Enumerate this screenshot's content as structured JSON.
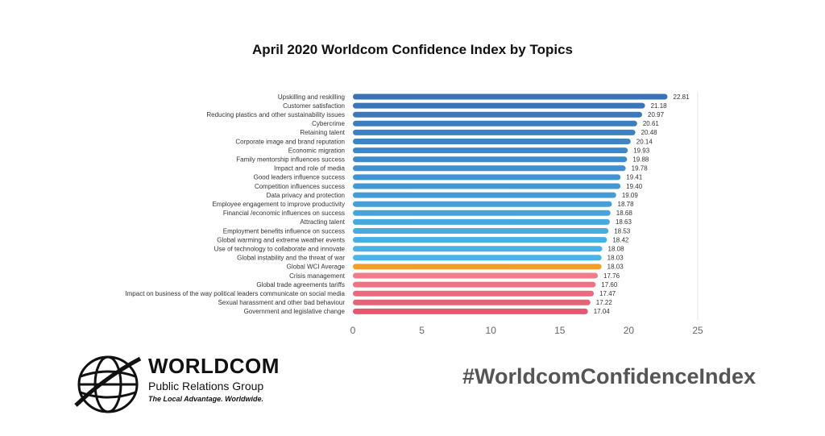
{
  "chart_data": {
    "type": "bar",
    "orientation": "horizontal",
    "title": "April 2020 Worldcom Confidence Index by Topics",
    "categories": [
      "Upskilling and reskilling",
      "Customer satisfaction",
      "Reducing plastics and other sustainability issues",
      "Cybercrime",
      "Retaining talent",
      "Corporate image and brand reputation",
      "Economic migration",
      "Family mentorship influences success",
      "Impact and role of media",
      "Good leaders influence success",
      "Competition influences success",
      "Data privacy and protection",
      "Employee engagement to improve productivity",
      "Financial /economic influences on success",
      "Attracting talent",
      "Employment benefits influence on success",
      "Global warming and extreme weather events",
      "Use of technology to collaborate and innovate",
      "Global instability and the threat of war",
      "Global WCI Average",
      "Crisis management",
      "Global trade agreements tariffs",
      "Impact on business of the way political leaders communicate on social media",
      "Sexual harassment and other bad behaviour",
      "Government and legislative change"
    ],
    "values": [
      22.81,
      21.18,
      20.97,
      20.61,
      20.48,
      20.14,
      19.93,
      19.88,
      19.78,
      19.41,
      19.4,
      19.09,
      18.78,
      18.68,
      18.63,
      18.53,
      18.42,
      18.08,
      18.03,
      18.03,
      17.76,
      17.6,
      17.47,
      17.22,
      17.04
    ],
    "value_labels": [
      "22.81",
      "21.18",
      "20.97",
      "20.61",
      "20.48",
      "20.14",
      "19.93",
      "19.88",
      "19.78",
      "19.41",
      "19.40",
      "19.09",
      "18.78",
      "18.68",
      "18.63",
      "18.53",
      "18.42",
      "18.08",
      "18.03",
      "18.03",
      "17.76",
      "17.60",
      "17.47",
      "17.22",
      "17.04"
    ],
    "bar_colors": [
      "#3a72b5",
      "#3b75b8",
      "#3c78bb",
      "#3d7cbe",
      "#3e80c1",
      "#3f84c4",
      "#3f88c7",
      "#408cca",
      "#4190cd",
      "#4294d0",
      "#4398d3",
      "#449cd6",
      "#45a0d9",
      "#46a4dc",
      "#47a8df",
      "#48abe2",
      "#49aee4",
      "#4ab1e6",
      "#4bb4e8",
      "#f0a02a",
      "#ef7e8a",
      "#ec7485",
      "#e96a7e",
      "#e66277",
      "#e35a70"
    ],
    "xticks": [
      "0",
      "5",
      "10",
      "15",
      "20",
      "25"
    ],
    "xlim": [
      0,
      25
    ],
    "grid": false
  },
  "branding": {
    "logo_name": "WORLDCOM",
    "logo_sub": "Public Relations Group",
    "logo_tag": "The Local Advantage. Worldwide.",
    "hashtag": "#WorldcomConfidenceIndex"
  }
}
